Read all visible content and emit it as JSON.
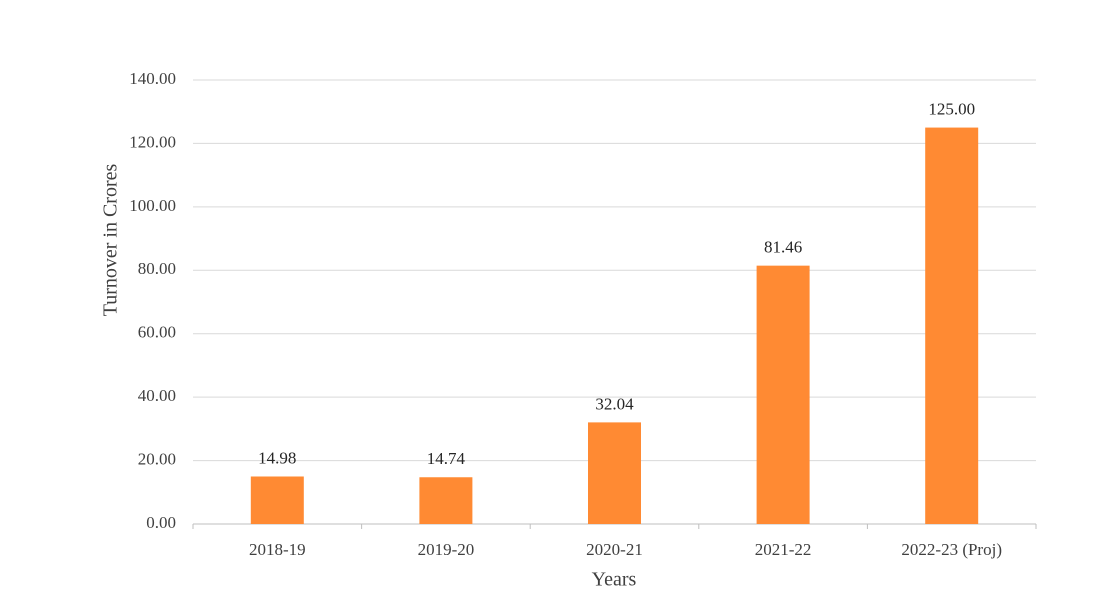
{
  "chart_data": {
    "type": "bar",
    "x_label": "Years",
    "y_label": "Turnover in Crores",
    "categories": [
      "2018-19",
      "2019-20",
      "2020-21",
      "2021-22",
      "2022-23 (Proj)"
    ],
    "values": [
      14.98,
      14.74,
      32.04,
      81.46,
      125
    ],
    "value_labels": [
      "14.98",
      "14.74",
      "32.04",
      "81.46",
      "125.00"
    ],
    "color": "#ff8a33",
    "ylim": [
      0,
      140
    ],
    "yticks": [
      {
        "value": 0,
        "label": "0.00"
      },
      {
        "value": 20,
        "label": "20.00"
      },
      {
        "value": 40,
        "label": "40.00"
      },
      {
        "value": 60,
        "label": "60.00"
      },
      {
        "value": 80,
        "label": "80.00"
      },
      {
        "value": 100,
        "label": "100.00"
      },
      {
        "value": 120,
        "label": "120.00"
      },
      {
        "value": 140,
        "label": "140.00"
      }
    ],
    "grid": true
  }
}
